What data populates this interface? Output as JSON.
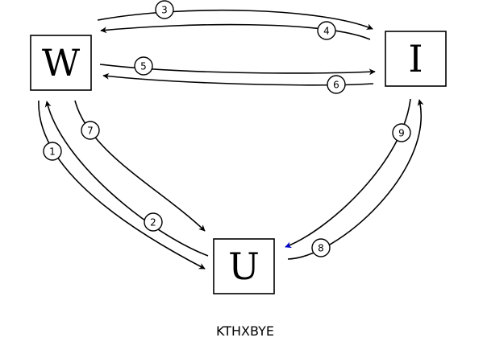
{
  "nodes": {
    "w": {
      "label": "W"
    },
    "i": {
      "label": "I"
    },
    "u": {
      "label": "U"
    }
  },
  "edges": [
    {
      "label": "1",
      "color": "#000000"
    },
    {
      "label": "2",
      "color": "#000000"
    },
    {
      "label": "3",
      "color": "#000000"
    },
    {
      "label": "4",
      "color": "#000000"
    },
    {
      "label": "5",
      "color": "#000000"
    },
    {
      "label": "6",
      "color": "#000000"
    },
    {
      "label": "7",
      "color": "#000000"
    },
    {
      "label": "8",
      "color": "#000000"
    },
    {
      "label": "9",
      "color": "#0000cc"
    }
  ],
  "caption": "KTHXBYE"
}
